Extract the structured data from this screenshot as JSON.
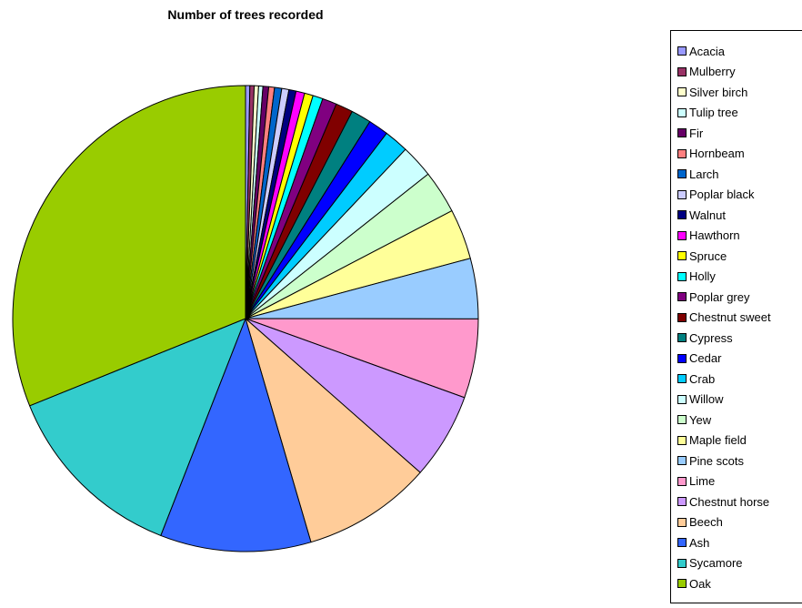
{
  "chart_data": {
    "type": "pie",
    "title": "Number of trees recorded",
    "legend_position": "right",
    "slices": [
      {
        "label": "Acacia",
        "value": 0.3,
        "color": "#9999ff"
      },
      {
        "label": "Mulberry",
        "value": 0.3,
        "color": "#993366"
      },
      {
        "label": "Silver birch",
        "value": 0.3,
        "color": "#ffffcc"
      },
      {
        "label": "Tulip tree",
        "value": 0.3,
        "color": "#ccffff"
      },
      {
        "label": "Fir",
        "value": 0.4,
        "color": "#660066"
      },
      {
        "label": "Hornbeam",
        "value": 0.4,
        "color": "#ff8080"
      },
      {
        "label": "Larch",
        "value": 0.5,
        "color": "#0066cc"
      },
      {
        "label": "Poplar black",
        "value": 0.5,
        "color": "#ccccff"
      },
      {
        "label": "Walnut",
        "value": 0.5,
        "color": "#000080"
      },
      {
        "label": "Hawthorn",
        "value": 0.6,
        "color": "#ff00ff"
      },
      {
        "label": "Spruce",
        "value": 0.6,
        "color": "#ffff00"
      },
      {
        "label": "Holly",
        "value": 0.7,
        "color": "#00ffff"
      },
      {
        "label": "Poplar grey",
        "value": 1.0,
        "color": "#800080"
      },
      {
        "label": "Chestnut sweet",
        "value": 1.2,
        "color": "#800000"
      },
      {
        "label": "Cypress",
        "value": 1.4,
        "color": "#008080"
      },
      {
        "label": "Cedar",
        "value": 1.4,
        "color": "#0000ff"
      },
      {
        "label": "Crab",
        "value": 1.7,
        "color": "#00ccff"
      },
      {
        "label": "Willow",
        "value": 2.3,
        "color": "#ccffff"
      },
      {
        "label": "Yew",
        "value": 3.0,
        "color": "#ccffcc"
      },
      {
        "label": "Maple field",
        "value": 3.5,
        "color": "#ffff99"
      },
      {
        "label": "Pine scots",
        "value": 4.2,
        "color": "#99ccff"
      },
      {
        "label": "Lime",
        "value": 5.5,
        "color": "#ff99cc"
      },
      {
        "label": "Chestnut horse",
        "value": 6.0,
        "color": "#cc99ff"
      },
      {
        "label": "Beech",
        "value": 9.0,
        "color": "#ffcc99"
      },
      {
        "label": "Ash",
        "value": 10.5,
        "color": "#3366ff"
      },
      {
        "label": "Sycamore",
        "value": 13.0,
        "color": "#33cccc"
      },
      {
        "label": "Oak",
        "value": 31.2,
        "color": "#99cc00"
      }
    ]
  }
}
